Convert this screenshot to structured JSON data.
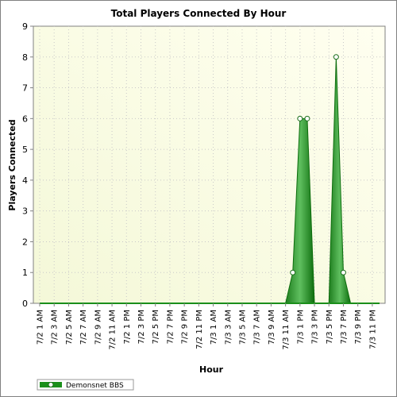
{
  "chart_data": {
    "type": "area",
    "title": "Total Players Connected By Hour",
    "xlabel": "Hour",
    "ylabel": "Players Connected",
    "ylim": [
      0,
      9
    ],
    "yticks": [
      0,
      1,
      2,
      3,
      4,
      5,
      6,
      7,
      8,
      9
    ],
    "x_tick_labels": [
      "7/2 1 AM",
      "7/2 3 AM",
      "7/2 5 AM",
      "7/2 7 AM",
      "7/2 9 AM",
      "7/2 11 AM",
      "7/2 1 PM",
      "7/2 3 PM",
      "7/2 5 PM",
      "7/2 7 PM",
      "7/2 9 PM",
      "7/2 11 PM",
      "7/3 1 AM",
      "7/3 3 AM",
      "7/3 5 AM",
      "7/3 7 AM",
      "7/3 9 AM",
      "7/3 11 AM",
      "7/3 1 PM",
      "7/3 3 PM",
      "7/3 5 PM",
      "7/3 7 PM",
      "7/3 9 PM",
      "7/3 11 PM"
    ],
    "x_hours_start": 0,
    "x_hours_end": 47,
    "grid": true,
    "legend_position": "bottom-left",
    "series": [
      {
        "name": "Demonsnet BBS",
        "color": "#1a8f1a",
        "hours": [
          0,
          1,
          2,
          3,
          4,
          5,
          6,
          7,
          8,
          9,
          10,
          11,
          12,
          13,
          14,
          15,
          16,
          17,
          18,
          19,
          20,
          21,
          22,
          23,
          24,
          25,
          26,
          27,
          28,
          29,
          30,
          31,
          32,
          33,
          34,
          35,
          36,
          37,
          38,
          39,
          40,
          41,
          42,
          43,
          44,
          45,
          46,
          47
        ],
        "values": [
          0,
          0,
          0,
          0,
          0,
          0,
          0,
          0,
          0,
          0,
          0,
          0,
          0,
          0,
          0,
          0,
          0,
          0,
          0,
          0,
          0,
          0,
          0,
          0,
          0,
          0,
          0,
          0,
          0,
          0,
          0,
          0,
          0,
          0,
          0,
          1,
          6,
          6,
          0,
          0,
          0,
          8,
          1,
          0,
          0,
          0,
          0,
          0
        ],
        "markers_at_hours": [
          35,
          36,
          37,
          41,
          42
        ]
      }
    ]
  }
}
